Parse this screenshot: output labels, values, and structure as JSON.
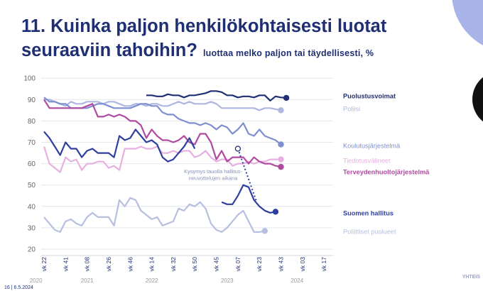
{
  "header": {
    "title_line1": "11. Kuinka paljon henkilökohtaisesti luotat",
    "title_line2": "seuraaviin tahoihin?",
    "subtitle": "luottaa melko paljon tai täydellisesti, %"
  },
  "footer": {
    "page": "16",
    "date": "6.5.2024",
    "brand": "YHTEIS"
  },
  "colors": {
    "Puolustusvoimat": "#1f2f73",
    "Poliisi": "#aeb7e0",
    "Koulutusjärjestelmä": "#7d8fcf",
    "Tiedotusvälineet": "#e6b0e0",
    "Terveydenhuoltojärjestelmä": "#b04aa0",
    "Suomen hallitus": "#2f3f9f",
    "Poliittiset puolueet": "#b7bfe0",
    "accent_circle": "#a8b4e8"
  },
  "chart_data": {
    "type": "line",
    "title": "11. Kuinka paljon henkilökohtaisesti luotat seuraaviin tahoihin?",
    "subtitle": "luottaa melko paljon tai täydellisesti, %",
    "xlabel": "",
    "ylabel": "%",
    "ylim": [
      20,
      100
    ],
    "yticks": [
      20,
      30,
      40,
      50,
      60,
      70,
      80,
      90,
      100
    ],
    "grid": true,
    "x_count": 48,
    "x_tick_labels": [
      {
        "i": 0,
        "label": "vk 22"
      },
      {
        "i": 4,
        "label": "vk 41"
      },
      {
        "i": 8,
        "label": "vk 08"
      },
      {
        "i": 12,
        "label": "vk 26"
      },
      {
        "i": 16,
        "label": "vk 46"
      },
      {
        "i": 20,
        "label": "vk 14"
      },
      {
        "i": 24,
        "label": "vk 32"
      },
      {
        "i": 28,
        "label": "vk 50"
      },
      {
        "i": 32,
        "label": "vk 45"
      },
      {
        "i": 36,
        "label": "vk 07"
      },
      {
        "i": 40,
        "label": "vk 23"
      },
      {
        "i": 44,
        "label": "vk 43"
      },
      {
        "i": 48,
        "label": "vk 03"
      },
      {
        "i": 52,
        "label": "vk 17"
      }
    ],
    "year_labels": [
      {
        "i": -1.5,
        "label": "2020"
      },
      {
        "i": 8,
        "label": "2021"
      },
      {
        "i": 20,
        "label": "2022"
      },
      {
        "i": 34,
        "label": "2023"
      },
      {
        "i": 47,
        "label": "2024"
      }
    ],
    "annotation": "Kysymys tauolla hallitus- neuvottelujen aikana",
    "annotation_lines": [
      "Kysymys tauolla hallitus-",
      "neuvottelujen aikana"
    ],
    "series": [
      {
        "name": "Puolustusvoimat",
        "start": 19,
        "values": [
          92,
          92,
          91.5,
          91.5,
          92.5,
          92,
          92,
          91,
          92,
          92,
          92.5,
          93,
          94,
          94,
          93.5,
          92,
          92,
          91,
          91.5,
          91.5,
          91,
          92,
          92,
          89.5,
          91.5,
          91,
          90.8
        ]
      },
      {
        "name": "Poliisi",
        "start": 0,
        "values": [
          90,
          90,
          89,
          88,
          87,
          89,
          88,
          88,
          89,
          89,
          89,
          88,
          89,
          89,
          88,
          87,
          87,
          88,
          88,
          87,
          88,
          88,
          87,
          87,
          88,
          89,
          88,
          89,
          88,
          88,
          88,
          89,
          88,
          86,
          86,
          86,
          86,
          86,
          86,
          86,
          85,
          86,
          86,
          85.5,
          85
        ]
      },
      {
        "name": "Koulutusjärjestelmä",
        "start": 0,
        "values": [
          91,
          89,
          89,
          88,
          88,
          86,
          86,
          86,
          86,
          87,
          88,
          88,
          87,
          86,
          86,
          86,
          86,
          87,
          88,
          88,
          87,
          87,
          84,
          83,
          83,
          81,
          80,
          79,
          79,
          78,
          79,
          78,
          76,
          78,
          77,
          74,
          76,
          79,
          74,
          73,
          76,
          73,
          72,
          71,
          69
        ]
      },
      {
        "name": "Tiedotusvälineet",
        "start": 0,
        "values": [
          68,
          60,
          58,
          56,
          63,
          61,
          62,
          57,
          60,
          60,
          61,
          61,
          58,
          59,
          57,
          67,
          67,
          67,
          68,
          67,
          67,
          68,
          65,
          65,
          66,
          65,
          66,
          66,
          63,
          64,
          66,
          63,
          61,
          62,
          62,
          59,
          60,
          60,
          61,
          60,
          61,
          61,
          62,
          62,
          62
        ]
      },
      {
        "name": "Terveydenhuoltojärjestelmä",
        "start": 0,
        "values": [
          90,
          86,
          86,
          86,
          86,
          86,
          86,
          86,
          87,
          88,
          82,
          82,
          83,
          82,
          83,
          82,
          80,
          80,
          78,
          72,
          76,
          73,
          71,
          71,
          70,
          71,
          73,
          70,
          69,
          74,
          74,
          70,
          62,
          66,
          61,
          63,
          63,
          63,
          60,
          63,
          61,
          60,
          60,
          59,
          58.5
        ]
      },
      {
        "name": "Suomen hallitus",
        "start": 0,
        "values": [
          75,
          72,
          68,
          64,
          70,
          67,
          67,
          63,
          66,
          67,
          65,
          65,
          65,
          63,
          73,
          71,
          72,
          76,
          73,
          70,
          71,
          69,
          63,
          61,
          62,
          65,
          68,
          72,
          67,
          null,
          null,
          null,
          null,
          42,
          41,
          41,
          45,
          50,
          49,
          43,
          40,
          38,
          37,
          37.5
        ]
      },
      {
        "name": "Poliittiset puolueet",
        "start": 0,
        "values": [
          35,
          32,
          29,
          28,
          33,
          34,
          32,
          31,
          35,
          37,
          35,
          35,
          35,
          31,
          43,
          40,
          44,
          43,
          38,
          36,
          34,
          35,
          31,
          32,
          33,
          39,
          38,
          41,
          40,
          42,
          39,
          32,
          29,
          28,
          30,
          33,
          36,
          38,
          33,
          28,
          28,
          28.5
        ]
      }
    ],
    "legend_labels": [
      "Puolustusvoimat",
      "Poliisi",
      "Koulutusjärjestelmä",
      "Tiedotusvälineet",
      "Terveydenhuoltojärjestelmä",
      "Suomen hallitus",
      "Poliittiset puolueet"
    ]
  }
}
